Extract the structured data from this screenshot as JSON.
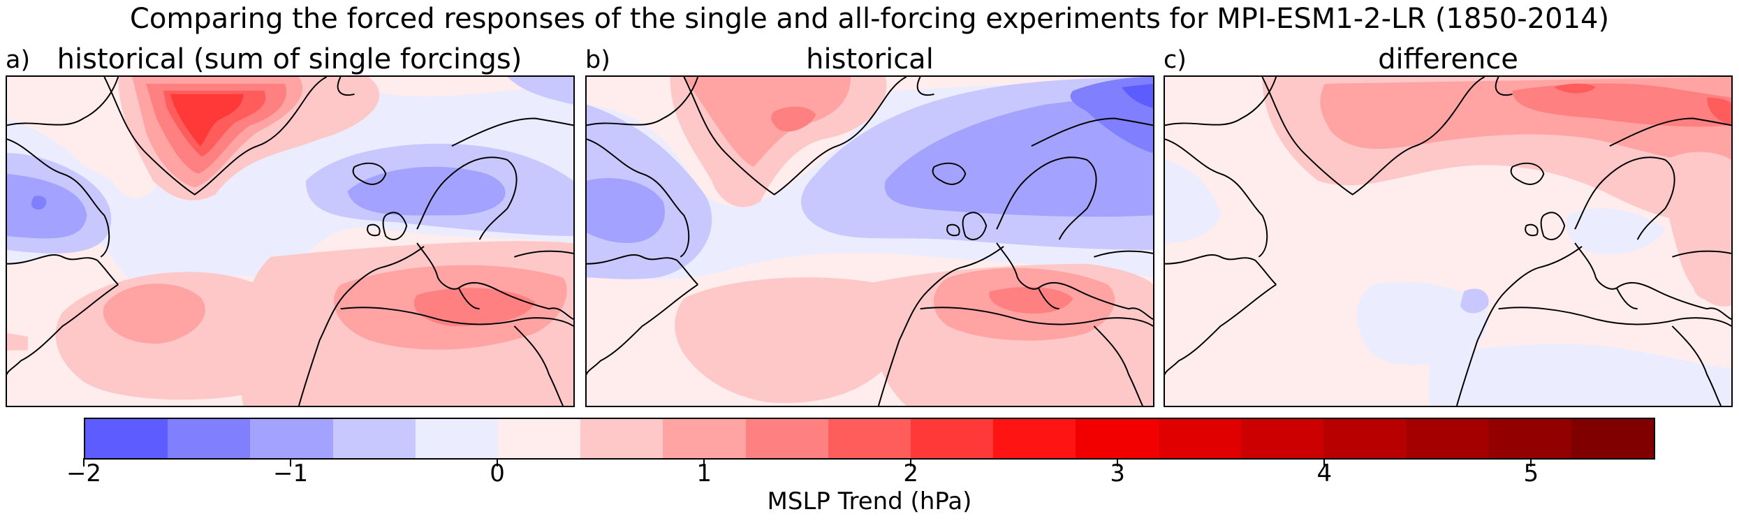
{
  "figure": {
    "title": "Comparing the forced responses of the single and all-forcing experiments for MPI-ESM1-2-LR (1850-2014)"
  },
  "panels": [
    {
      "label": "a)",
      "title": "historical (sum of single forcings)"
    },
    {
      "label": "b)",
      "title": "historical"
    },
    {
      "label": "c)",
      "title": "difference"
    }
  ],
  "colorbar": {
    "label": "MSLP Trend (hPa)",
    "range": [
      -2,
      5.6
    ],
    "step": 0.4,
    "ticks": [
      {
        "value": -2,
        "label": "−2"
      },
      {
        "value": -1,
        "label": "−1"
      },
      {
        "value": 0,
        "label": "0"
      },
      {
        "value": 1,
        "label": "1"
      },
      {
        "value": 2,
        "label": "2"
      },
      {
        "value": 3,
        "label": "3"
      },
      {
        "value": 4,
        "label": "4"
      },
      {
        "value": 5,
        "label": "5"
      }
    ],
    "colors": [
      "#5c5cff",
      "#8080ff",
      "#a3a3ff",
      "#c8c8ff",
      "#ececff",
      "#ffecec",
      "#ffc8c8",
      "#ffa3a3",
      "#ff8080",
      "#ff5c5c",
      "#ff3838",
      "#ff1414",
      "#f20000",
      "#e00000",
      "#cc0000",
      "#b80000",
      "#a50000",
      "#920000",
      "#800000"
    ]
  },
  "chart_data": {
    "type": "heatmap",
    "variable": "MSLP Trend (hPa)",
    "levels_min": -2,
    "levels_max": 5.6,
    "level_step": 0.4,
    "panels": [
      {
        "name": "historical (sum of single forcings)",
        "features": [
          {
            "region": "Greenland high",
            "value": 2.2
          },
          {
            "region": "Baffin/Labrador low",
            "value": -1.2
          },
          {
            "region": "Scandinavia low",
            "value": -1.0
          },
          {
            "region": "subtropical Atlantic high",
            "value": 1.0
          },
          {
            "region": "Mediterranean high",
            "value": 1.2
          }
        ]
      },
      {
        "name": "historical",
        "features": [
          {
            "region": "Greenland high",
            "value": 1.4
          },
          {
            "region": "Labrador low",
            "value": -1.0
          },
          {
            "region": "Scandinavia/Arctic low",
            "value": -1.6
          },
          {
            "region": "subtropical Atlantic high",
            "value": 0.6
          },
          {
            "region": "Mediterranean high",
            "value": 1.0
          }
        ]
      },
      {
        "name": "difference",
        "features": [
          {
            "region": "northern band high",
            "value": 1.3
          },
          {
            "region": "mid-Atlantic weak low",
            "value": -0.5
          },
          {
            "region": "eastern Europe high",
            "value": 0.8
          }
        ]
      }
    ]
  }
}
